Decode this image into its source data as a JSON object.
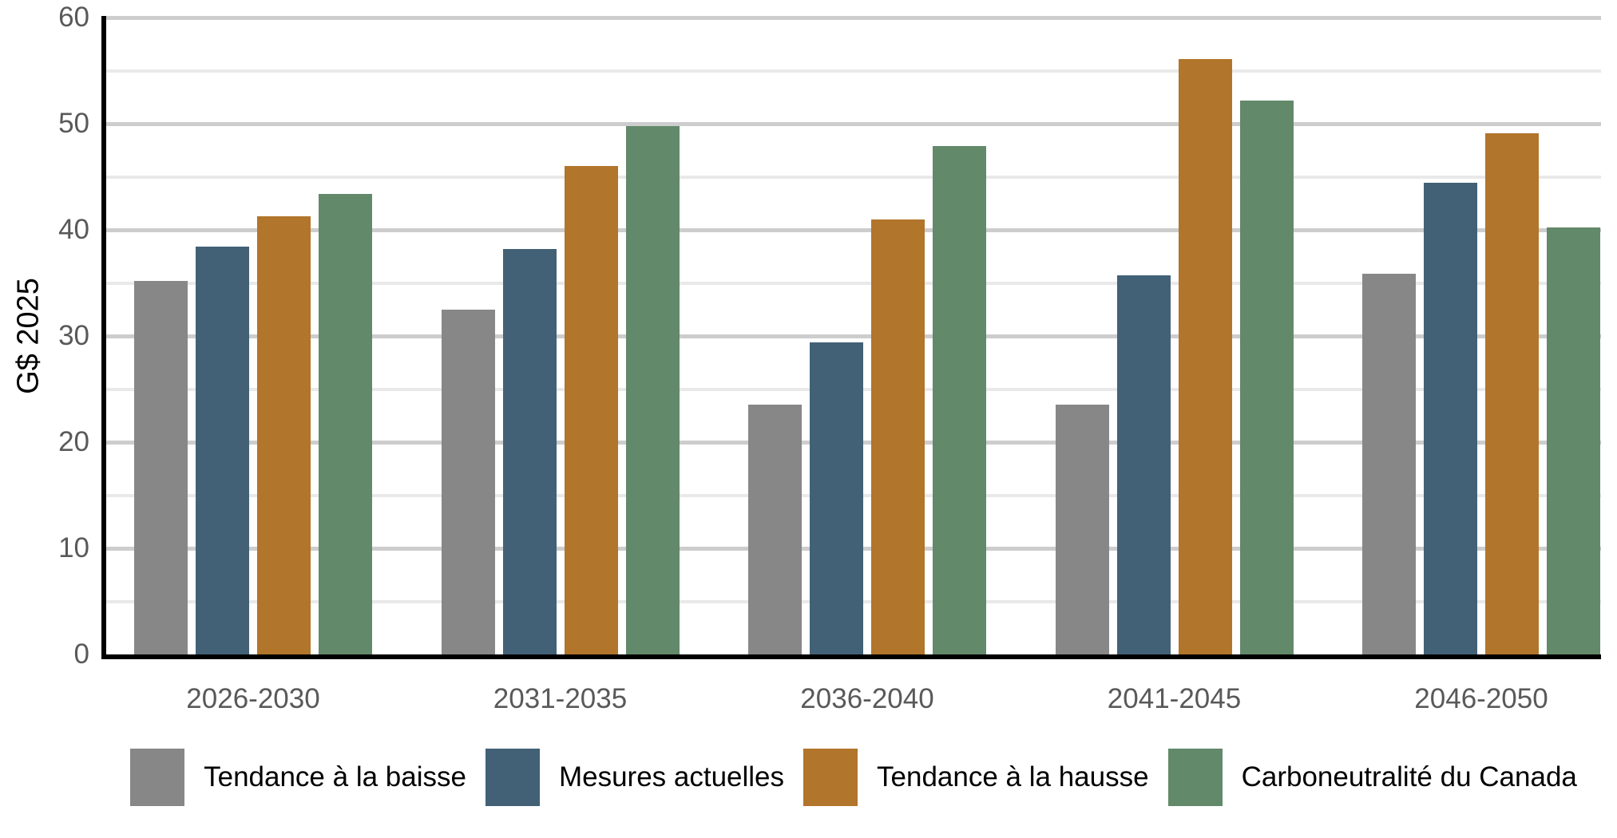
{
  "chart_data": {
    "type": "bar",
    "title": "",
    "ylabel": "G$ 2025",
    "xlabel": "",
    "ylim": [
      0,
      60
    ],
    "ytick_step": 10,
    "minor_gridline_step": 5,
    "grid": "horizontal",
    "legend_position": "bottom",
    "categories": [
      "2026-2030",
      "2031-2035",
      "2036-2040",
      "2041-2045",
      "2046-2050"
    ],
    "series": [
      {
        "name": "Tendance à la baisse",
        "color": "#878787",
        "values": [
          35.2,
          32.5,
          23.5,
          23.5,
          35.9
        ]
      },
      {
        "name": "Mesures actuelles",
        "color": "#426176",
        "values": [
          38.4,
          38.2,
          29.4,
          35.7,
          44.4
        ]
      },
      {
        "name": "Tendance à la hausse",
        "color": "#B1752B",
        "values": [
          41.3,
          46.0,
          41.0,
          56.1,
          49.1
        ]
      },
      {
        "name": "Carboneutralité du Canada",
        "color": "#62896A",
        "values": [
          43.4,
          49.8,
          47.9,
          52.2,
          40.2
        ]
      }
    ],
    "colors": {
      "axis": "#000000",
      "tick_labels": "#595959",
      "gridline_major": "#cdcdcd",
      "gridline_minor": "#e9e9e9",
      "legend_text": "#000000",
      "background": "#ffffff"
    }
  }
}
